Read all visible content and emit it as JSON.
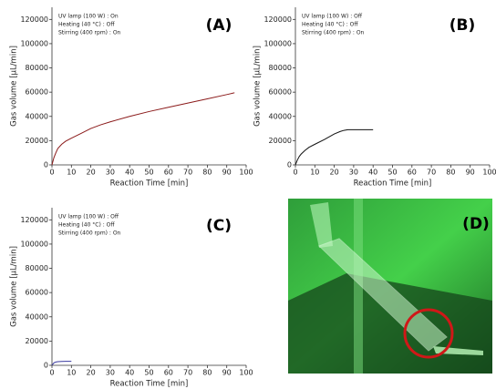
{
  "chart_data": [
    {
      "type": "line",
      "label": "(A)",
      "annotations": [
        "UV lamp (100 W) : On",
        "Heating (40 °C) : Off",
        "Stirring (400 rpm) : On"
      ],
      "x_label": "Reaction Time [min]",
      "y_label": "Gas volume [μL/min]",
      "x": [
        0,
        1,
        2,
        3,
        5,
        7,
        10,
        15,
        20,
        25,
        30,
        40,
        50,
        60,
        70,
        80,
        90,
        94
      ],
      "values": [
        0,
        6000,
        10000,
        13500,
        17000,
        19500,
        22000,
        26000,
        30000,
        33000,
        35500,
        40000,
        44000,
        47500,
        51000,
        54500,
        58000,
        59500
      ],
      "color": "#8b1a1a",
      "xlim": [
        0,
        100
      ],
      "ylim": [
        0,
        130000
      ],
      "xticks": [
        0,
        10,
        20,
        30,
        40,
        50,
        60,
        70,
        80,
        90,
        100
      ],
      "yticks": [
        0,
        20000,
        40000,
        60000,
        80000,
        100000,
        120000
      ]
    },
    {
      "type": "line",
      "label": "(B)",
      "annotations": [
        "UV lamp (100 W) : Off",
        "Heating (40 °C) : Off",
        "Stirring (400 rpm) : On"
      ],
      "x_label": "Reaction Time [min]",
      "y_label": "Gas volume [μL/min]",
      "x": [
        0,
        1,
        2,
        3,
        5,
        7,
        10,
        15,
        20,
        23,
        25,
        27,
        30,
        35,
        40
      ],
      "values": [
        0,
        4000,
        7000,
        9000,
        12000,
        14500,
        17000,
        21000,
        25500,
        27500,
        28500,
        29000,
        29000,
        29000,
        29000
      ],
      "color": "#111111",
      "xlim": [
        0,
        100
      ],
      "ylim": [
        0,
        130000
      ],
      "xticks": [
        0,
        10,
        20,
        30,
        40,
        50,
        60,
        70,
        80,
        90,
        100
      ],
      "yticks": [
        0,
        20000,
        40000,
        60000,
        80000,
        100000,
        120000
      ]
    },
    {
      "type": "line",
      "label": "(C)",
      "annotations": [
        "UV lamp (100 W) : Off",
        "Heating (40 °C) : Off",
        "Stirring (400 rpm) : On"
      ],
      "x_label": "Reaction Time [min]",
      "y_label": "Gas volume [μL/min]",
      "x": [
        0,
        1,
        2,
        3,
        5,
        7,
        10
      ],
      "values": [
        0,
        2000,
        2700,
        3000,
        3200,
        3300,
        3300
      ],
      "color": "#3a3aa0",
      "xlim": [
        0,
        100
      ],
      "ylim": [
        0,
        130000
      ],
      "xticks": [
        0,
        10,
        20,
        30,
        40,
        50,
        60,
        70,
        80,
        90,
        100
      ],
      "yticks": [
        0,
        20000,
        40000,
        60000,
        80000,
        100000,
        120000
      ]
    }
  ],
  "photo": {
    "label": "(D)"
  }
}
